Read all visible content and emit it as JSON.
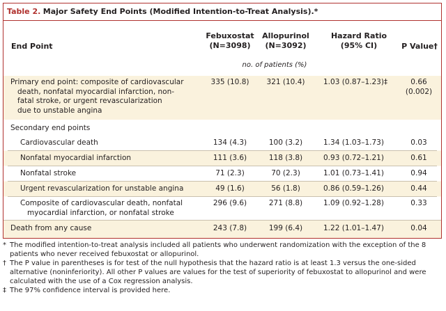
{
  "title": {
    "label": "Table 2.",
    "text": "Major Safety End Points (Modified Intention-to-Treat Analysis).*"
  },
  "columns": {
    "endpoint": "End Point",
    "febuxostat": "Febuxostat",
    "febuxostat_n": "(N=3098)",
    "allopurinol": "Allopurinol",
    "allopurinol_n": "(N=3092)",
    "hazard_ratio": "Hazard Ratio",
    "hazard_ci": "(95% CI)",
    "p_value": "P Value†"
  },
  "units": "no. of patients (%)",
  "rows": [
    {
      "endpoint": "Primary end point: composite of cardiovascular death, nonfatal myocardial infarction, nonfatal stroke, or urgent revascularization due to unstable angina",
      "lines": [
        "Primary end point: composite of cardiovascular",
        "death, nonfatal myocardial infarction, non-",
        "fatal stroke, or urgent revascularization",
        "due to unstable angina"
      ],
      "febuxostat": "335 (10.8)",
      "allopurinol": "321 (10.4)",
      "hazard_ratio": "1.03 (0.87–1.23)‡",
      "p_value": "0.66",
      "p_value_2": "(0.002)"
    },
    {
      "endpoint": "Secondary end points"
    },
    {
      "endpoint": "Cardiovascular death",
      "febuxostat": "134 (4.3)",
      "allopurinol": "100 (3.2)",
      "hazard_ratio": "1.34 (1.03–1.73)",
      "p_value": "0.03"
    },
    {
      "endpoint": "Nonfatal myocardial infarction",
      "febuxostat": "111 (3.6)",
      "allopurinol": "118 (3.8)",
      "hazard_ratio": "0.93 (0.72–1.21)",
      "p_value": "0.61"
    },
    {
      "endpoint": "Nonfatal stroke",
      "febuxostat": "71 (2.3)",
      "allopurinol": "70 (2.3)",
      "hazard_ratio": "1.01 (0.73–1.41)",
      "p_value": "0.94"
    },
    {
      "endpoint": "Urgent revascularization for unstable angina",
      "febuxostat": "49 (1.6)",
      "allopurinol": "56 (1.8)",
      "hazard_ratio": "0.86 (0.59–1.26)",
      "p_value": "0.44"
    },
    {
      "endpoint": "Composite of cardiovascular death, nonfatal myocardial infarction, or nonfatal stroke",
      "lines": [
        "Composite of cardiovascular death, nonfatal",
        "myocardial infarction, or nonfatal stroke"
      ],
      "febuxostat": "296 (9.6)",
      "allopurinol": "271 (8.8)",
      "hazard_ratio": "1.09 (0.92–1.28)",
      "p_value": "0.33"
    },
    {
      "endpoint": "Death from any cause",
      "febuxostat": "243 (7.8)",
      "allopurinol": "199 (6.4)",
      "hazard_ratio": "1.22 (1.01–1.47)",
      "p_value": "0.04"
    }
  ],
  "footnotes": [
    {
      "mark": "*",
      "text": "The modified intention-to-treat analysis included all patients who underwent randomization with the exception of the 8 patients who never received febuxostat or allopurinol."
    },
    {
      "mark": "†",
      "text": "The P value in parentheses is for test of the null hypothesis that the hazard ratio is at least 1.3 versus the one-sided alternative (noninferiority). All other P values are values for the test of superiority of febuxostat to allopurinol and were calculated with the use of a Cox regression analysis."
    },
    {
      "mark": "‡",
      "text": "The 97% confidence interval is provided here."
    }
  ]
}
